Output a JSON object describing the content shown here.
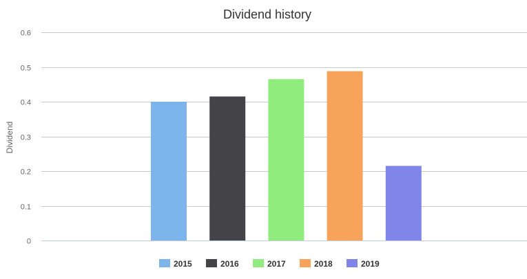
{
  "chart_data": {
    "type": "bar",
    "title": "Dividend history",
    "ylabel": "Dividend",
    "xlabel": "",
    "ylim": [
      0,
      0.6
    ],
    "yticks": [
      {
        "value": 0,
        "label": "0"
      },
      {
        "value": 0.1,
        "label": "0.1"
      },
      {
        "value": 0.2,
        "label": "0.2"
      },
      {
        "value": 0.3,
        "label": "0.3"
      },
      {
        "value": 0.4,
        "label": "0.4"
      },
      {
        "value": 0.5,
        "label": "0.5"
      },
      {
        "value": 0.6,
        "label": "0.6"
      }
    ],
    "grid": true,
    "legend_position": "bottom",
    "series": [
      {
        "name": "2015",
        "value": 0.4,
        "color": "#7cb5ec"
      },
      {
        "name": "2016",
        "value": 0.415,
        "color": "#434348"
      },
      {
        "name": "2017",
        "value": 0.465,
        "color": "#90ed7d"
      },
      {
        "name": "2018",
        "value": 0.488,
        "color": "#f7a35c"
      },
      {
        "name": "2019",
        "value": 0.215,
        "color": "#8085e9"
      }
    ]
  }
}
